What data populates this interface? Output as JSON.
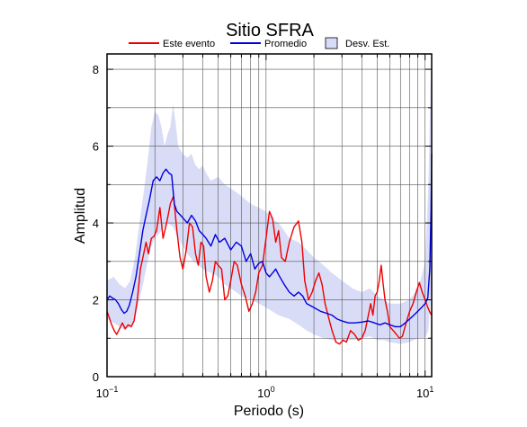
{
  "chart_data": {
    "type": "line",
    "title": "Sitio SFRA",
    "xlabel": "Periodo (s)",
    "ylabel": "Amplitud",
    "xscale": "log",
    "xlim": [
      0.1,
      11
    ],
    "ylim": [
      0,
      8.4
    ],
    "grid": true,
    "legend_position": "top",
    "x_ticks": [
      {
        "value": 0.1,
        "base": "10",
        "exp": "−1"
      },
      {
        "value": 1,
        "base": "10",
        "exp": "0"
      },
      {
        "value": 10,
        "base": "10",
        "exp": "1"
      }
    ],
    "y_ticks": [
      0,
      2,
      4,
      6,
      8
    ],
    "legend": [
      {
        "label": "Este evento",
        "kind": "line",
        "color": "#ee0000"
      },
      {
        "label": "Promedio",
        "kind": "line",
        "color": "#0000dd"
      },
      {
        "label": "Desv. Est.",
        "kind": "patch",
        "color": "#d9dcf7"
      }
    ],
    "series": [
      {
        "name": "Este evento",
        "color": "#ee0000",
        "points": [
          [
            0.1,
            1.7
          ],
          [
            0.103,
            1.55
          ],
          [
            0.107,
            1.35
          ],
          [
            0.111,
            1.2
          ],
          [
            0.115,
            1.1
          ],
          [
            0.12,
            1.25
          ],
          [
            0.125,
            1.4
          ],
          [
            0.13,
            1.25
          ],
          [
            0.136,
            1.35
          ],
          [
            0.142,
            1.3
          ],
          [
            0.148,
            1.45
          ],
          [
            0.155,
            2.0
          ],
          [
            0.162,
            2.8
          ],
          [
            0.17,
            3.2
          ],
          [
            0.176,
            3.5
          ],
          [
            0.182,
            3.2
          ],
          [
            0.19,
            3.6
          ],
          [
            0.197,
            3.65
          ],
          [
            0.205,
            3.8
          ],
          [
            0.215,
            4.4
          ],
          [
            0.225,
            3.6
          ],
          [
            0.237,
            4.0
          ],
          [
            0.25,
            4.5
          ],
          [
            0.262,
            4.7
          ],
          [
            0.275,
            3.8
          ],
          [
            0.288,
            3.1
          ],
          [
            0.3,
            2.8
          ],
          [
            0.315,
            3.3
          ],
          [
            0.33,
            4.0
          ],
          [
            0.345,
            3.9
          ],
          [
            0.36,
            3.2
          ],
          [
            0.375,
            2.9
          ],
          [
            0.39,
            3.5
          ],
          [
            0.405,
            3.4
          ],
          [
            0.42,
            2.6
          ],
          [
            0.44,
            2.2
          ],
          [
            0.46,
            2.5
          ],
          [
            0.48,
            3.0
          ],
          [
            0.5,
            2.9
          ],
          [
            0.525,
            2.8
          ],
          [
            0.55,
            2.0
          ],
          [
            0.575,
            2.1
          ],
          [
            0.6,
            2.5
          ],
          [
            0.63,
            3.0
          ],
          [
            0.66,
            2.9
          ],
          [
            0.7,
            2.4
          ],
          [
            0.74,
            2.1
          ],
          [
            0.78,
            1.7
          ],
          [
            0.82,
            1.9
          ],
          [
            0.86,
            2.2
          ],
          [
            0.9,
            2.7
          ],
          [
            0.95,
            2.9
          ],
          [
            1.0,
            3.6
          ],
          [
            1.05,
            4.3
          ],
          [
            1.1,
            4.1
          ],
          [
            1.15,
            3.5
          ],
          [
            1.2,
            3.8
          ],
          [
            1.25,
            3.1
          ],
          [
            1.32,
            3.0
          ],
          [
            1.4,
            3.5
          ],
          [
            1.5,
            3.9
          ],
          [
            1.6,
            4.05
          ],
          [
            1.68,
            3.5
          ],
          [
            1.75,
            2.5
          ],
          [
            1.85,
            2.0
          ],
          [
            1.95,
            2.2
          ],
          [
            2.05,
            2.5
          ],
          [
            2.15,
            2.7
          ],
          [
            2.25,
            2.4
          ],
          [
            2.35,
            1.9
          ],
          [
            2.45,
            1.6
          ],
          [
            2.6,
            1.2
          ],
          [
            2.75,
            0.9
          ],
          [
            2.9,
            0.85
          ],
          [
            3.05,
            0.95
          ],
          [
            3.2,
            0.9
          ],
          [
            3.4,
            1.2
          ],
          [
            3.6,
            1.1
          ],
          [
            3.8,
            0.95
          ],
          [
            4.0,
            1.0
          ],
          [
            4.2,
            1.2
          ],
          [
            4.4,
            1.6
          ],
          [
            4.55,
            1.9
          ],
          [
            4.7,
            1.6
          ],
          [
            4.85,
            2.1
          ],
          [
            5.0,
            2.2
          ],
          [
            5.15,
            2.5
          ],
          [
            5.3,
            2.9
          ],
          [
            5.45,
            2.4
          ],
          [
            5.6,
            2.0
          ],
          [
            5.8,
            1.7
          ],
          [
            6.0,
            1.3
          ],
          [
            6.3,
            1.2
          ],
          [
            6.6,
            1.1
          ],
          [
            6.9,
            1.0
          ],
          [
            7.2,
            1.05
          ],
          [
            7.6,
            1.4
          ],
          [
            8.0,
            1.7
          ],
          [
            8.4,
            1.9
          ],
          [
            8.8,
            2.2
          ],
          [
            9.2,
            2.45
          ],
          [
            9.6,
            2.2
          ],
          [
            10.0,
            2.0
          ],
          [
            10.4,
            1.8
          ],
          [
            10.8,
            1.65
          ],
          [
            11.0,
            1.6
          ]
        ]
      },
      {
        "name": "Promedio",
        "color": "#0000dd",
        "points": [
          [
            0.1,
            2.0
          ],
          [
            0.104,
            2.1
          ],
          [
            0.108,
            2.05
          ],
          [
            0.113,
            2.0
          ],
          [
            0.118,
            1.9
          ],
          [
            0.123,
            1.75
          ],
          [
            0.128,
            1.65
          ],
          [
            0.133,
            1.7
          ],
          [
            0.138,
            1.85
          ],
          [
            0.145,
            2.2
          ],
          [
            0.152,
            2.6
          ],
          [
            0.16,
            3.2
          ],
          [
            0.168,
            3.8
          ],
          [
            0.176,
            4.2
          ],
          [
            0.185,
            4.6
          ],
          [
            0.195,
            5.1
          ],
          [
            0.205,
            5.2
          ],
          [
            0.215,
            5.1
          ],
          [
            0.225,
            5.3
          ],
          [
            0.235,
            5.4
          ],
          [
            0.245,
            5.3
          ],
          [
            0.255,
            5.25
          ],
          [
            0.265,
            4.5
          ],
          [
            0.275,
            4.3
          ],
          [
            0.29,
            4.2
          ],
          [
            0.305,
            4.1
          ],
          [
            0.32,
            4.0
          ],
          [
            0.34,
            4.2
          ],
          [
            0.36,
            4.05
          ],
          [
            0.38,
            3.8
          ],
          [
            0.4,
            3.7
          ],
          [
            0.42,
            3.6
          ],
          [
            0.45,
            3.4
          ],
          [
            0.48,
            3.7
          ],
          [
            0.51,
            3.5
          ],
          [
            0.55,
            3.6
          ],
          [
            0.6,
            3.3
          ],
          [
            0.65,
            3.5
          ],
          [
            0.7,
            3.4
          ],
          [
            0.75,
            3.0
          ],
          [
            0.8,
            3.2
          ],
          [
            0.85,
            2.8
          ],
          [
            0.9,
            2.95
          ],
          [
            0.95,
            3.0
          ],
          [
            1.0,
            2.7
          ],
          [
            1.05,
            2.6
          ],
          [
            1.1,
            2.7
          ],
          [
            1.15,
            2.8
          ],
          [
            1.2,
            2.65
          ],
          [
            1.3,
            2.4
          ],
          [
            1.4,
            2.2
          ],
          [
            1.5,
            2.1
          ],
          [
            1.6,
            2.2
          ],
          [
            1.7,
            2.1
          ],
          [
            1.8,
            1.9
          ],
          [
            2.0,
            1.8
          ],
          [
            2.2,
            1.7
          ],
          [
            2.4,
            1.65
          ],
          [
            2.6,
            1.6
          ],
          [
            2.8,
            1.5
          ],
          [
            3.0,
            1.45
          ],
          [
            3.3,
            1.4
          ],
          [
            3.6,
            1.4
          ],
          [
            4.0,
            1.42
          ],
          [
            4.4,
            1.45
          ],
          [
            4.8,
            1.4
          ],
          [
            5.2,
            1.35
          ],
          [
            5.6,
            1.4
          ],
          [
            6.0,
            1.35
          ],
          [
            6.5,
            1.3
          ],
          [
            7.0,
            1.3
          ],
          [
            7.5,
            1.4
          ],
          [
            8.0,
            1.5
          ],
          [
            8.5,
            1.6
          ],
          [
            9.0,
            1.7
          ],
          [
            9.5,
            1.8
          ],
          [
            10.0,
            1.9
          ],
          [
            10.4,
            2.05
          ],
          [
            10.7,
            2.8
          ],
          [
            10.9,
            4.3
          ],
          [
            11.0,
            5.8
          ]
        ]
      }
    ],
    "band": {
      "name": "Desv. Est.",
      "color": "#d9dcf7",
      "upper": [
        [
          0.1,
          2.5
        ],
        [
          0.11,
          2.6
        ],
        [
          0.12,
          2.4
        ],
        [
          0.13,
          2.3
        ],
        [
          0.14,
          2.5
        ],
        [
          0.15,
          3.1
        ],
        [
          0.16,
          4.0
        ],
        [
          0.17,
          4.8
        ],
        [
          0.18,
          5.6
        ],
        [
          0.19,
          6.5
        ],
        [
          0.2,
          6.9
        ],
        [
          0.21,
          6.8
        ],
        [
          0.22,
          6.5
        ],
        [
          0.23,
          6.0
        ],
        [
          0.24,
          6.3
        ],
        [
          0.25,
          6.5
        ],
        [
          0.26,
          7.1
        ],
        [
          0.27,
          6.6
        ],
        [
          0.28,
          6.0
        ],
        [
          0.3,
          5.8
        ],
        [
          0.32,
          5.7
        ],
        [
          0.34,
          5.8
        ],
        [
          0.36,
          5.5
        ],
        [
          0.38,
          5.4
        ],
        [
          0.4,
          5.5
        ],
        [
          0.42,
          5.3
        ],
        [
          0.45,
          5.1
        ],
        [
          0.5,
          5.2
        ],
        [
          0.55,
          5.0
        ],
        [
          0.6,
          4.9
        ],
        [
          0.65,
          4.8
        ],
        [
          0.7,
          4.7
        ],
        [
          0.8,
          4.5
        ],
        [
          0.9,
          4.4
        ],
        [
          1.0,
          4.3
        ],
        [
          1.1,
          4.1
        ],
        [
          1.2,
          4.0
        ],
        [
          1.3,
          3.8
        ],
        [
          1.4,
          3.6
        ],
        [
          1.6,
          3.5
        ],
        [
          1.8,
          3.3
        ],
        [
          2.0,
          3.1
        ],
        [
          2.3,
          2.9
        ],
        [
          2.6,
          2.7
        ],
        [
          3.0,
          2.5
        ],
        [
          3.5,
          2.3
        ],
        [
          4.0,
          2.2
        ],
        [
          4.5,
          2.3
        ],
        [
          5.0,
          2.1
        ],
        [
          5.5,
          2.0
        ],
        [
          6.0,
          1.9
        ],
        [
          7.0,
          1.9
        ],
        [
          8.0,
          2.0
        ],
        [
          9.0,
          2.3
        ],
        [
          9.5,
          2.6
        ],
        [
          10.0,
          3.0
        ],
        [
          10.5,
          5.0
        ],
        [
          10.8,
          7.5
        ],
        [
          11.0,
          8.4
        ]
      ],
      "lower": [
        [
          0.1,
          1.5
        ],
        [
          0.11,
          1.4
        ],
        [
          0.12,
          1.3
        ],
        [
          0.13,
          1.2
        ],
        [
          0.14,
          1.3
        ],
        [
          0.15,
          1.5
        ],
        [
          0.16,
          2.0
        ],
        [
          0.17,
          2.5
        ],
        [
          0.18,
          3.0
        ],
        [
          0.19,
          3.4
        ],
        [
          0.2,
          3.6
        ],
        [
          0.22,
          3.8
        ],
        [
          0.24,
          4.0
        ],
        [
          0.26,
          3.9
        ],
        [
          0.28,
          3.6
        ],
        [
          0.3,
          3.4
        ],
        [
          0.32,
          3.2
        ],
        [
          0.35,
          3.0
        ],
        [
          0.4,
          2.8
        ],
        [
          0.45,
          2.7
        ],
        [
          0.5,
          2.6
        ],
        [
          0.55,
          2.4
        ],
        [
          0.6,
          2.3
        ],
        [
          0.7,
          2.1
        ],
        [
          0.8,
          2.0
        ],
        [
          0.9,
          1.9
        ],
        [
          1.0,
          1.8
        ],
        [
          1.2,
          1.6
        ],
        [
          1.4,
          1.5
        ],
        [
          1.6,
          1.35
        ],
        [
          1.8,
          1.2
        ],
        [
          2.0,
          1.1
        ],
        [
          2.3,
          1.0
        ],
        [
          2.6,
          0.95
        ],
        [
          3.0,
          0.95
        ],
        [
          3.5,
          0.95
        ],
        [
          4.0,
          1.0
        ],
        [
          4.5,
          1.05
        ],
        [
          5.0,
          0.95
        ],
        [
          5.5,
          0.95
        ],
        [
          6.0,
          0.9
        ],
        [
          7.0,
          0.85
        ],
        [
          8.0,
          0.9
        ],
        [
          9.0,
          1.0
        ],
        [
          9.5,
          1.0
        ],
        [
          10.0,
          1.0
        ],
        [
          10.5,
          1.2
        ],
        [
          10.8,
          2.0
        ],
        [
          11.0,
          2.5
        ]
      ]
    }
  }
}
